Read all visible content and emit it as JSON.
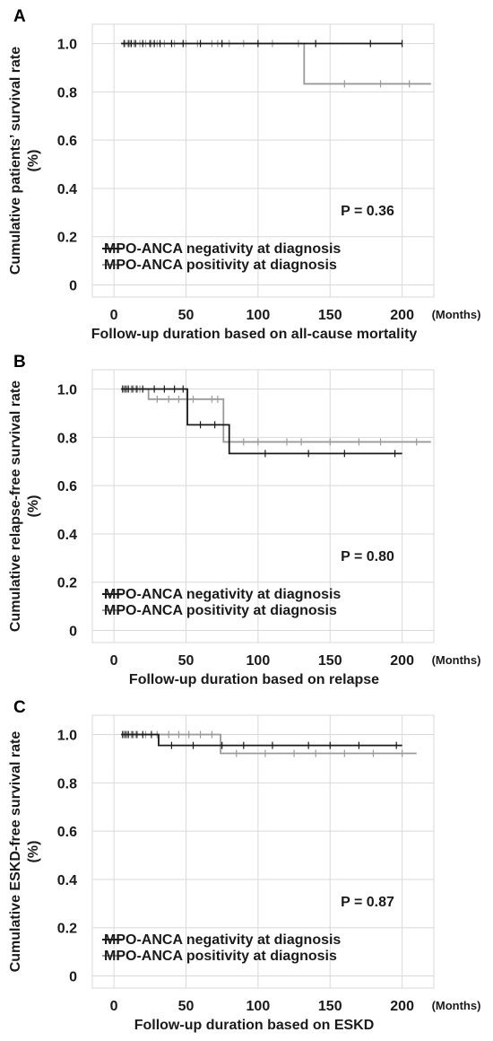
{
  "chart_data": [
    {
      "type": "line",
      "panel_label": "A",
      "xlabel": "Follow-up duration based on all-cause mortality",
      "x_unit": "(Months)",
      "ylabel_lines": [
        "Cumulative patients’ survival rate",
        "(%)"
      ],
      "xlim": [
        -15,
        222
      ],
      "ylim": [
        -0.05,
        1.08
      ],
      "xticks": [
        0,
        50,
        100,
        150,
        200
      ],
      "yticks": [
        0,
        0.2,
        0.4,
        0.6,
        0.8,
        1.0
      ],
      "ytick_labels": [
        "0",
        "0.2",
        "0.4",
        "0.6",
        "0.8",
        "1.0"
      ],
      "grid": true,
      "legend_placement": "bottom-left",
      "annotation": "P = 0.36",
      "series": [
        {
          "name": "MPO-ANCA negativity at diagnosis",
          "color": "#1a1a1a",
          "steps": [
            [
              5,
              1.0
            ],
            [
              200,
              1.0
            ]
          ],
          "censor_x": [
            7,
            10,
            12,
            15,
            20,
            25,
            28,
            32,
            40,
            48,
            60,
            75,
            100,
            140,
            178,
            200
          ]
        },
        {
          "name": "MPO-ANCA positivity at diagnosis",
          "color": "#9a9a9a",
          "steps": [
            [
              5,
              1.0
            ],
            [
              132,
              1.0
            ],
            [
              132,
              0.833
            ],
            [
              220,
              0.833
            ]
          ],
          "censor_x": [
            8,
            11,
            14,
            18,
            22,
            26,
            30,
            35,
            42,
            50,
            58,
            68,
            72,
            80,
            90,
            110,
            128,
            160,
            185,
            205
          ]
        }
      ]
    },
    {
      "type": "line",
      "panel_label": "B",
      "xlabel": "Follow-up duration based on relapse",
      "x_unit": "(Months)",
      "ylabel_lines": [
        "Cumulative relapse-free survival rate",
        "(%)"
      ],
      "xlim": [
        -15,
        222
      ],
      "ylim": [
        -0.05,
        1.08
      ],
      "xticks": [
        0,
        50,
        100,
        150,
        200
      ],
      "yticks": [
        0,
        0.2,
        0.4,
        0.6,
        0.8,
        1.0
      ],
      "ytick_labels": [
        "0",
        "0.2",
        "0.4",
        "0.6",
        "0.8",
        "1.0"
      ],
      "grid": true,
      "legend_placement": "bottom-left",
      "annotation": "P = 0.80",
      "series": [
        {
          "name": "MPO-ANCA negativity at diagnosis",
          "color": "#1a1a1a",
          "steps": [
            [
              5,
              1.0
            ],
            [
              51,
              1.0
            ],
            [
              51,
              0.852
            ],
            [
              80,
              0.852
            ],
            [
              80,
              0.733
            ],
            [
              200,
              0.733
            ]
          ],
          "censor_x": [
            6,
            8,
            10,
            13,
            16,
            20,
            28,
            35,
            42,
            48,
            60,
            70,
            105,
            135,
            160,
            195
          ]
        },
        {
          "name": "MPO-ANCA positivity at diagnosis",
          "color": "#9a9a9a",
          "steps": [
            [
              5,
              1.0
            ],
            [
              24,
              1.0
            ],
            [
              24,
              0.958
            ],
            [
              76,
              0.958
            ],
            [
              76,
              0.781
            ],
            [
              220,
              0.781
            ]
          ],
          "censor_x": [
            7,
            9,
            12,
            15,
            18,
            30,
            38,
            45,
            55,
            68,
            72,
            90,
            100,
            120,
            130,
            150,
            170,
            185,
            210
          ]
        }
      ]
    },
    {
      "type": "line",
      "panel_label": "C",
      "xlabel": "Follow-up duration based on ESKD",
      "x_unit": "(Months)",
      "ylabel_lines": [
        "Cumulative ESKD-free survival rate",
        "(%)"
      ],
      "xlim": [
        -15,
        222
      ],
      "ylim": [
        -0.05,
        1.08
      ],
      "xticks": [
        0,
        50,
        100,
        150,
        200
      ],
      "yticks": [
        0,
        0.2,
        0.4,
        0.6,
        0.8,
        1.0
      ],
      "ytick_labels": [
        "0",
        "0.2",
        "0.4",
        "0.6",
        "0.8",
        "1.0"
      ],
      "grid": true,
      "legend_placement": "bottom-left",
      "annotation": "P = 0.87",
      "series": [
        {
          "name": "MPO-ANCA negativity at diagnosis",
          "color": "#1a1a1a",
          "steps": [
            [
              5,
              1.0
            ],
            [
              31,
              1.0
            ],
            [
              31,
              0.955
            ],
            [
              200,
              0.955
            ]
          ],
          "censor_x": [
            6,
            8,
            10,
            13,
            16,
            20,
            26,
            40,
            55,
            75,
            90,
            110,
            135,
            150,
            170,
            196
          ]
        },
        {
          "name": "MPO-ANCA positivity at diagnosis",
          "color": "#9a9a9a",
          "steps": [
            [
              5,
              1.0
            ],
            [
              74,
              1.0
            ],
            [
              74,
              0.922
            ],
            [
              210,
              0.922
            ]
          ],
          "censor_x": [
            7,
            9,
            12,
            15,
            22,
            30,
            38,
            45,
            52,
            60,
            68,
            85,
            105,
            125,
            140,
            160,
            180,
            200
          ]
        }
      ]
    }
  ]
}
